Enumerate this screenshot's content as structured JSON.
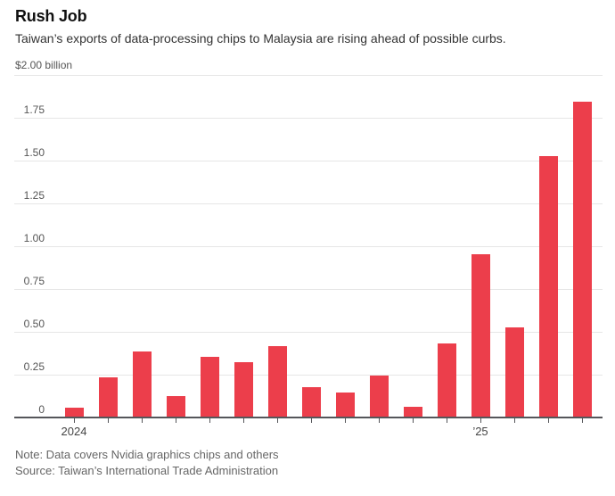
{
  "chart_data": {
    "type": "bar",
    "title": "Rush Job",
    "subtitle": "Taiwan’s exports of data-processing chips to Malaysia are rising ahead of possible curbs.",
    "unit_label": "$2.00 billion",
    "ylim": [
      0,
      2.0
    ],
    "grid": "horizontal",
    "legend_position": "none",
    "y_ticks": [
      {
        "value": 2.0,
        "label": ""
      },
      {
        "value": 1.75,
        "label": "1.75"
      },
      {
        "value": 1.5,
        "label": "1.50"
      },
      {
        "value": 1.25,
        "label": "1.25"
      },
      {
        "value": 1.0,
        "label": "1.00"
      },
      {
        "value": 0.75,
        "label": "0.75"
      },
      {
        "value": 0.5,
        "label": "0.50"
      },
      {
        "value": 0.25,
        "label": "0.25"
      },
      {
        "value": 0,
        "label": "0"
      }
    ],
    "values": [
      0.06,
      0.24,
      0.39,
      0.13,
      0.36,
      0.33,
      0.42,
      0.18,
      0.15,
      0.25,
      0.07,
      0.44,
      0.96,
      0.53,
      1.53,
      1.85
    ],
    "x_axis_labels": [
      {
        "label": "2024",
        "bar_index": 0
      },
      {
        "label": "’25",
        "bar_index": 12
      }
    ],
    "bar_color": "#ec3e4b",
    "gridline_color": "#e6e6e6",
    "axis_color": "#55565a"
  },
  "footer": {
    "note": "Note: Data covers Nvidia graphics chips and others",
    "source": "Source: Taiwan’s International Trade Administration"
  }
}
